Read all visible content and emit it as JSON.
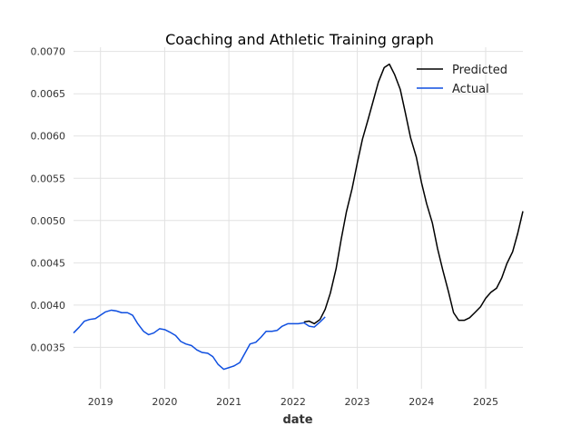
{
  "chart_data": {
    "type": "line",
    "title": "Coaching and Athletic Training graph",
    "xlabel": "date",
    "ylabel": "",
    "xlim": [
      2018.58,
      2025.58
    ],
    "ylim": [
      0.00301,
      0.00705
    ],
    "x_ticks": [
      2019,
      2020,
      2021,
      2022,
      2023,
      2024,
      2025
    ],
    "x_tick_labels": [
      "2019",
      "2020",
      "2021",
      "2022",
      "2023",
      "2024",
      "2025"
    ],
    "y_ticks": [
      0.0035,
      0.004,
      0.0045,
      0.005,
      0.0055,
      0.006,
      0.0065,
      0.007
    ],
    "y_tick_labels": [
      "0.0035",
      "0.0040",
      "0.0045",
      "0.0050",
      "0.0055",
      "0.0060",
      "0.0065",
      "0.0070"
    ],
    "grid": true,
    "legend_position": "top-right",
    "series": [
      {
        "name": "Predicted",
        "color": "#000000",
        "points": [
          [
            2022.17,
            0.0038
          ],
          [
            2022.25,
            0.00381
          ],
          [
            2022.33,
            0.00378
          ],
          [
            2022.42,
            0.00383
          ],
          [
            2022.5,
            0.00395
          ],
          [
            2022.58,
            0.00414
          ],
          [
            2022.67,
            0.00443
          ],
          [
            2022.75,
            0.00478
          ],
          [
            2022.83,
            0.0051
          ],
          [
            2022.92,
            0.00538
          ],
          [
            2023.0,
            0.00568
          ],
          [
            2023.08,
            0.00596
          ],
          [
            2023.17,
            0.0062
          ],
          [
            2023.25,
            0.00642
          ],
          [
            2023.33,
            0.00664
          ],
          [
            2023.42,
            0.00681
          ],
          [
            2023.5,
            0.00685
          ],
          [
            2023.58,
            0.00673
          ],
          [
            2023.67,
            0.00655
          ],
          [
            2023.75,
            0.00627
          ],
          [
            2023.83,
            0.00598
          ],
          [
            2023.92,
            0.00575
          ],
          [
            2024.0,
            0.00545
          ],
          [
            2024.08,
            0.0052
          ],
          [
            2024.17,
            0.00497
          ],
          [
            2024.25,
            0.00467
          ],
          [
            2024.33,
            0.00442
          ],
          [
            2024.42,
            0.00416
          ],
          [
            2024.5,
            0.00391
          ],
          [
            2024.58,
            0.00382
          ],
          [
            2024.67,
            0.00382
          ],
          [
            2024.75,
            0.00385
          ],
          [
            2024.83,
            0.00391
          ],
          [
            2024.92,
            0.00398
          ],
          [
            2025.0,
            0.00408
          ],
          [
            2025.08,
            0.00415
          ],
          [
            2025.17,
            0.0042
          ],
          [
            2025.25,
            0.00432
          ],
          [
            2025.33,
            0.00449
          ],
          [
            2025.42,
            0.00463
          ],
          [
            2025.5,
            0.00485
          ],
          [
            2025.58,
            0.00511
          ]
        ]
      },
      {
        "name": "Actual",
        "color": "#0f4fe0",
        "points": [
          [
            2018.58,
            0.00367
          ],
          [
            2018.67,
            0.00374
          ],
          [
            2018.75,
            0.00381
          ],
          [
            2018.83,
            0.00383
          ],
          [
            2018.92,
            0.00384
          ],
          [
            2019.0,
            0.00388
          ],
          [
            2019.08,
            0.00392
          ],
          [
            2019.17,
            0.00394
          ],
          [
            2019.25,
            0.00393
          ],
          [
            2019.33,
            0.00391
          ],
          [
            2019.42,
            0.00391
          ],
          [
            2019.5,
            0.00388
          ],
          [
            2019.58,
            0.00378
          ],
          [
            2019.67,
            0.00369
          ],
          [
            2019.75,
            0.00365
          ],
          [
            2019.83,
            0.00367
          ],
          [
            2019.92,
            0.00372
          ],
          [
            2020.0,
            0.00371
          ],
          [
            2020.08,
            0.00368
          ],
          [
            2020.17,
            0.00364
          ],
          [
            2020.25,
            0.00357
          ],
          [
            2020.33,
            0.00354
          ],
          [
            2020.42,
            0.00352
          ],
          [
            2020.5,
            0.00347
          ],
          [
            2020.58,
            0.00344
          ],
          [
            2020.67,
            0.00343
          ],
          [
            2020.75,
            0.00339
          ],
          [
            2020.83,
            0.0033
          ],
          [
            2020.92,
            0.00324
          ],
          [
            2021.0,
            0.00326
          ],
          [
            2021.08,
            0.00328
          ],
          [
            2021.17,
            0.00332
          ],
          [
            2021.25,
            0.00343
          ],
          [
            2021.33,
            0.00354
          ],
          [
            2021.42,
            0.00356
          ],
          [
            2021.5,
            0.00362
          ],
          [
            2021.58,
            0.00369
          ],
          [
            2021.67,
            0.00369
          ],
          [
            2021.75,
            0.0037
          ],
          [
            2021.83,
            0.00375
          ],
          [
            2021.92,
            0.00378
          ],
          [
            2022.0,
            0.00378
          ],
          [
            2022.08,
            0.00378
          ],
          [
            2022.17,
            0.00379
          ],
          [
            2022.25,
            0.00375
          ],
          [
            2022.33,
            0.00374
          ],
          [
            2022.42,
            0.0038
          ],
          [
            2022.5,
            0.00386
          ]
        ]
      }
    ]
  }
}
